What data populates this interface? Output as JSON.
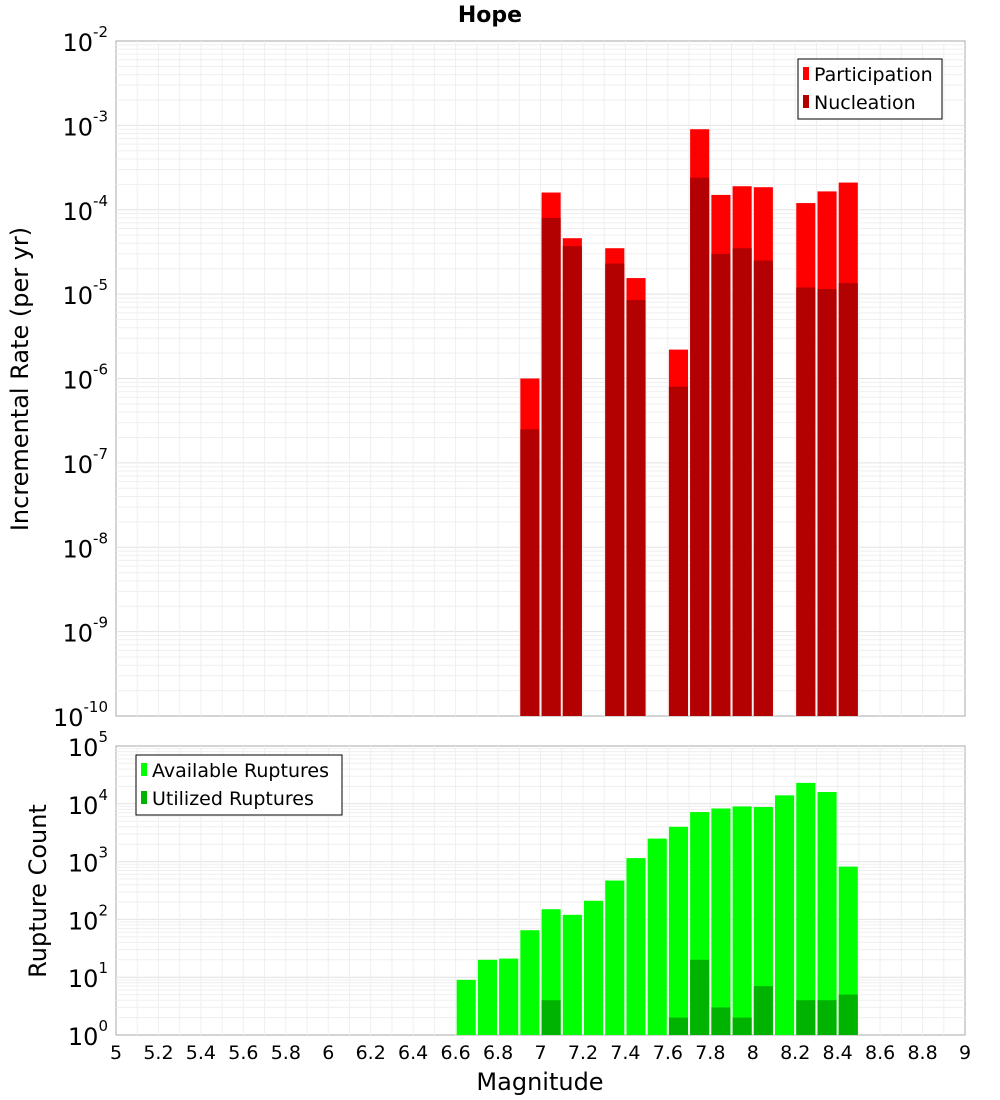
{
  "chart_data": [
    {
      "type": "bar",
      "title": "Hope",
      "ylabel": "Incremental Rate (per yr)",
      "xlabel": "",
      "xlim": [
        5,
        9
      ],
      "yscale": "log",
      "ylim": [
        1e-10,
        0.01
      ],
      "y_tick_exponents": [
        "-10",
        "-9",
        "-8",
        "-7",
        "-6",
        "-5",
        "-4",
        "-3",
        "-2"
      ],
      "y_tick_base": "10",
      "legend_position": "top-right",
      "bar_width": 0.09,
      "series": [
        {
          "name": "Participation",
          "color": "#ff0000",
          "x": [
            6.95,
            7.05,
            7.15,
            7.35,
            7.45,
            7.65,
            7.75,
            7.85,
            7.95,
            8.05,
            8.25,
            8.35,
            8.45
          ],
          "values": [
            1e-06,
            0.00016,
            4.6e-05,
            3.5e-05,
            1.55e-05,
            2.2e-06,
            0.0009,
            0.00015,
            0.00019,
            0.000185,
            0.00012,
            0.000165,
            0.00021
          ]
        },
        {
          "name": "Nucleation",
          "color": "#b30000",
          "x": [
            6.95,
            7.05,
            7.15,
            7.35,
            7.45,
            7.65,
            7.75,
            7.85,
            7.95,
            8.05,
            8.25,
            8.35,
            8.45
          ],
          "values": [
            2.5e-07,
            8e-05,
            3.7e-05,
            2.3e-05,
            8.5e-06,
            8e-07,
            0.00024,
            3e-05,
            3.5e-05,
            2.5e-05,
            1.2e-05,
            1.15e-05,
            1.35e-05
          ]
        }
      ]
    },
    {
      "type": "bar",
      "title": "",
      "ylabel": "Rupture Count",
      "xlabel": "Magnitude",
      "xlim": [
        5,
        9
      ],
      "x_ticks": [
        "5",
        "5.2",
        "5.4",
        "5.6",
        "5.8",
        "6",
        "6.2",
        "6.4",
        "6.6",
        "6.8",
        "7",
        "7.2",
        "7.4",
        "7.6",
        "7.8",
        "8",
        "8.2",
        "8.4",
        "8.6",
        "8.8",
        "9"
      ],
      "yscale": "log",
      "ylim": [
        1,
        100000.0
      ],
      "y_tick_exponents": [
        "0",
        "1",
        "2",
        "3",
        "4",
        "5"
      ],
      "y_tick_base": "10",
      "legend_position": "top-left",
      "bar_width": 0.09,
      "series": [
        {
          "name": "Available Ruptures",
          "color": "#00ff00",
          "x": [
            6.65,
            6.75,
            6.85,
            6.95,
            7.05,
            7.15,
            7.25,
            7.35,
            7.45,
            7.55,
            7.65,
            7.75,
            7.85,
            7.95,
            8.05,
            8.15,
            8.25,
            8.35,
            8.45
          ],
          "values": [
            9,
            20,
            21,
            65,
            150,
            120,
            210,
            470,
            1150,
            2500,
            4000,
            7200,
            8300,
            9000,
            8800,
            14000,
            23000,
            16000,
            820
          ]
        },
        {
          "name": "Utilized Ruptures",
          "color": "#00b300",
          "x": [
            6.95,
            7.05,
            7.15,
            7.35,
            7.45,
            7.55,
            7.65,
            7.75,
            7.85,
            7.95,
            8.05,
            8.25,
            8.35,
            8.45
          ],
          "values": [
            1,
            4,
            1,
            1,
            1,
            1,
            2,
            20,
            3,
            2,
            7,
            4,
            4,
            5
          ]
        }
      ]
    }
  ]
}
